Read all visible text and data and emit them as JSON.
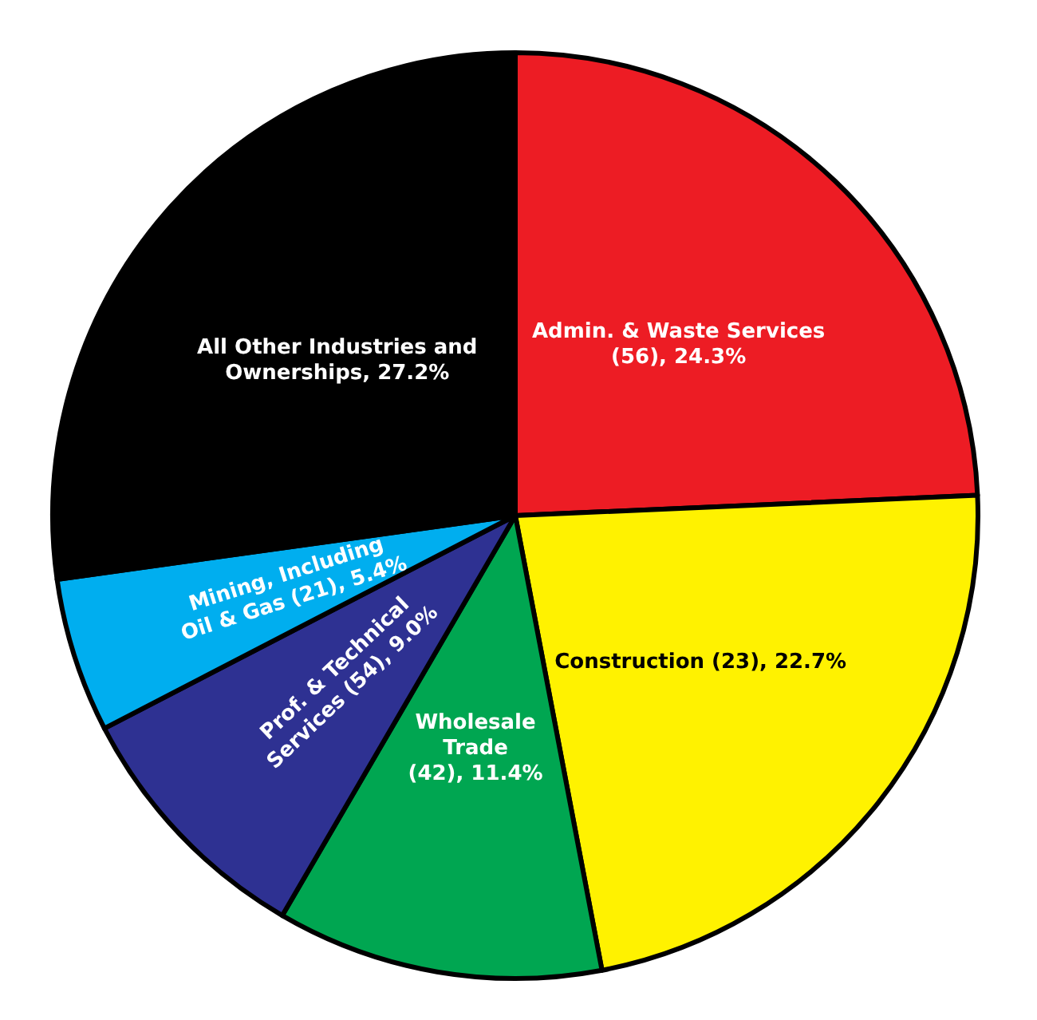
{
  "chart_data": {
    "type": "pie",
    "categories": [
      "Admin. & Waste Services (56)",
      "Construction (23)",
      "Wholesale Trade (42)",
      "Prof. & Technical Services (54)",
      "Mining, Including Oil & Gas (21)",
      "All Other Industries and Ownerships"
    ],
    "values": [
      24.3,
      22.7,
      11.4,
      9.0,
      5.4,
      27.2
    ],
    "value_labels": [
      "24.3%",
      "22.7%",
      "11.4%",
      "9.0%",
      "5.4%",
      "27.2%"
    ],
    "colors": [
      "#ed1c24",
      "#fff200",
      "#00a651",
      "#2e3192",
      "#00aeef",
      "#000000"
    ]
  }
}
